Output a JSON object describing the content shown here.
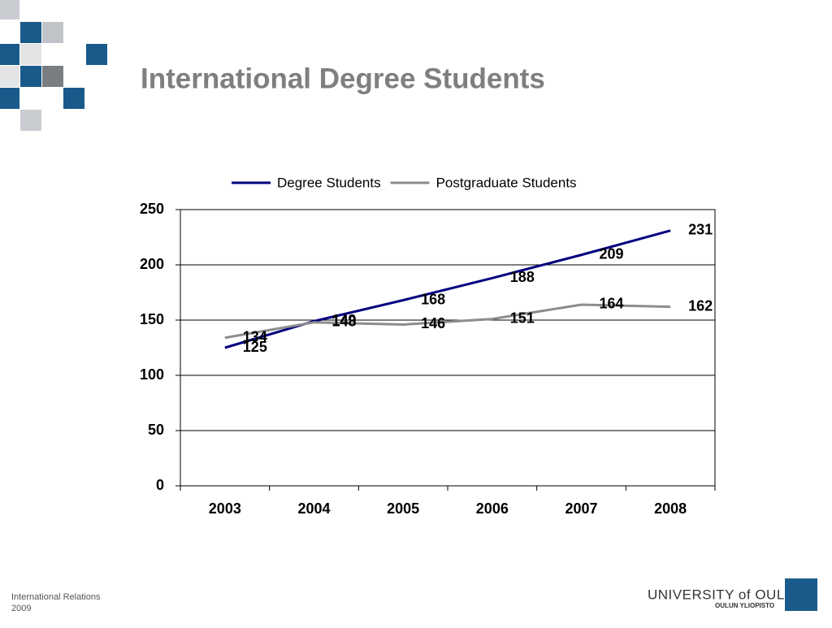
{
  "chart_data": {
    "type": "line",
    "title": "International Degree Students",
    "categories": [
      "2003",
      "2004",
      "2005",
      "2006",
      "2007",
      "2008"
    ],
    "series": [
      {
        "name": "Degree Students",
        "color": "#000080",
        "values": [
          125,
          149,
          168,
          188,
          209,
          231
        ]
      },
      {
        "name": "Postgraduate Students",
        "color": "#8c8c8c",
        "values": [
          134,
          148,
          146,
          151,
          164,
          162
        ]
      }
    ],
    "ylim": [
      0,
      250
    ],
    "yticks": [
      0,
      50,
      100,
      150,
      200,
      250
    ],
    "grid": true,
    "legend": "top"
  },
  "footer": {
    "department": "International Relations",
    "year": "2009",
    "university": "UNIVERSITY of OULU",
    "university_local": "OULUN YLIOPISTO"
  }
}
